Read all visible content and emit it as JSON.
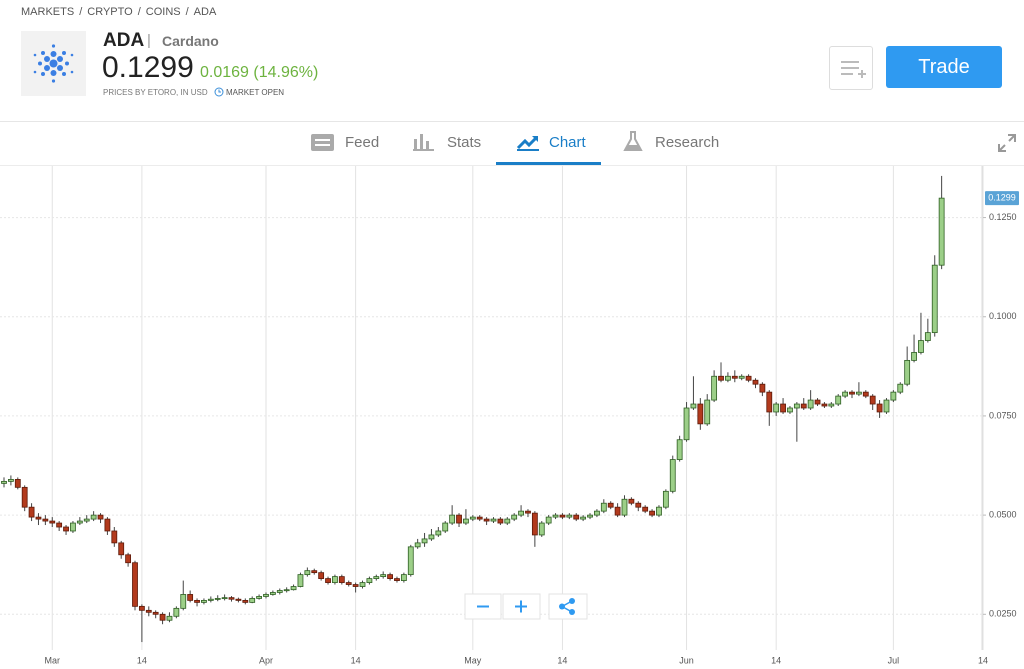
{
  "breadcrumb": {
    "items": [
      "MARKETS",
      "CRYPTO",
      "COINS",
      "ADA"
    ],
    "separator": "/"
  },
  "header": {
    "symbol": "ADA",
    "divider": "|",
    "name": "Cardano",
    "price": "0.1299",
    "change": "0.0169 (14.96%)",
    "source": "PRICES BY ETORO, IN USD",
    "status": "MARKET OPEN",
    "trade_button": "Trade"
  },
  "tabs": [
    "Feed",
    "Stats",
    "Chart",
    "Research"
  ],
  "chart_data": {
    "type": "candlestick",
    "x": [
      "02-23",
      "02-24",
      "02-25",
      "02-26",
      "02-27",
      "02-28",
      "02-29",
      "03-01",
      "03-02",
      "03-03",
      "03-04",
      "03-05",
      "03-06",
      "03-07",
      "03-08",
      "03-09",
      "03-10",
      "03-11",
      "03-12",
      "03-13",
      "03-14",
      "03-15",
      "03-16",
      "03-17",
      "03-18",
      "03-19",
      "03-20",
      "03-21",
      "03-22",
      "03-23",
      "03-24",
      "03-25",
      "03-26",
      "03-27",
      "03-28",
      "03-29",
      "03-30",
      "03-31",
      "04-01",
      "04-02",
      "04-03",
      "04-04",
      "04-05",
      "04-06",
      "04-07",
      "04-08",
      "04-09",
      "04-10",
      "04-11",
      "04-12",
      "04-13",
      "04-14",
      "04-15",
      "04-16",
      "04-17",
      "04-18",
      "04-19",
      "04-20",
      "04-21",
      "04-22",
      "04-23",
      "04-24",
      "04-25",
      "04-26",
      "04-27",
      "04-28",
      "04-29",
      "04-30",
      "05-01",
      "05-02",
      "05-03",
      "05-04",
      "05-05",
      "05-06",
      "05-07",
      "05-08",
      "05-09",
      "05-10",
      "05-11",
      "05-12",
      "05-13",
      "05-14",
      "05-15",
      "05-16",
      "05-17",
      "05-18",
      "05-19",
      "05-20",
      "05-21",
      "05-22",
      "05-23",
      "05-24",
      "05-25",
      "05-26",
      "05-27",
      "05-28",
      "05-29",
      "05-30",
      "05-31",
      "06-01",
      "06-02",
      "06-03",
      "06-04",
      "06-05",
      "06-06",
      "06-07",
      "06-08",
      "06-09",
      "06-10",
      "06-11",
      "06-12",
      "06-13",
      "06-14",
      "06-15",
      "06-16",
      "06-17",
      "06-18",
      "06-19",
      "06-20",
      "06-21",
      "06-22",
      "06-23",
      "06-24",
      "06-25",
      "06-26",
      "06-27",
      "06-28",
      "06-29",
      "06-30",
      "07-01",
      "07-02",
      "07-03",
      "07-04",
      "07-05",
      "07-06",
      "07-07",
      "07-08"
    ],
    "open": [
      0.058,
      0.0585,
      0.059,
      0.057,
      0.052,
      0.0495,
      0.049,
      0.0485,
      0.048,
      0.047,
      0.046,
      0.048,
      0.0485,
      0.049,
      0.05,
      0.049,
      0.046,
      0.043,
      0.04,
      0.038,
      0.027,
      0.026,
      0.0255,
      0.025,
      0.0235,
      0.0245,
      0.0265,
      0.03,
      0.0285,
      0.028,
      0.0285,
      0.0288,
      0.029,
      0.0292,
      0.0288,
      0.0285,
      0.028,
      0.029,
      0.0295,
      0.03,
      0.0305,
      0.031,
      0.0312,
      0.032,
      0.035,
      0.036,
      0.0355,
      0.034,
      0.033,
      0.0345,
      0.033,
      0.0325,
      0.032,
      0.033,
      0.034,
      0.0345,
      0.035,
      0.034,
      0.0335,
      0.035,
      0.042,
      0.043,
      0.044,
      0.045,
      0.046,
      0.048,
      0.05,
      0.048,
      0.049,
      0.0495,
      0.049,
      0.0485,
      0.049,
      0.048,
      0.049,
      0.05,
      0.051,
      0.0505,
      0.045,
      0.048,
      0.0495,
      0.05,
      0.0495,
      0.05,
      0.049,
      0.0495,
      0.05,
      0.051,
      0.053,
      0.052,
      0.05,
      0.054,
      0.053,
      0.052,
      0.051,
      0.05,
      0.052,
      0.056,
      0.064,
      0.069,
      0.077,
      0.078,
      0.073,
      0.079,
      0.085,
      0.084,
      0.085,
      0.0845,
      0.085,
      0.084,
      0.083,
      0.081,
      0.076,
      0.078,
      0.076,
      0.077,
      0.078,
      0.077,
      0.079,
      0.078,
      0.0775,
      0.078,
      0.08,
      0.081,
      0.0805,
      0.081,
      0.08,
      0.078,
      0.076,
      0.079,
      0.081,
      0.083,
      0.089,
      0.091,
      0.094,
      0.096,
      0.113
    ],
    "high": [
      0.0595,
      0.06,
      0.0595,
      0.0575,
      0.053,
      0.0505,
      0.05,
      0.0495,
      0.0485,
      0.0475,
      0.0485,
      0.0495,
      0.05,
      0.051,
      0.0505,
      0.0495,
      0.047,
      0.0435,
      0.0405,
      0.0385,
      0.0275,
      0.027,
      0.026,
      0.0255,
      0.0255,
      0.027,
      0.0335,
      0.031,
      0.029,
      0.029,
      0.0295,
      0.0298,
      0.03,
      0.0296,
      0.0292,
      0.029,
      0.0295,
      0.03,
      0.0305,
      0.031,
      0.0315,
      0.0318,
      0.0325,
      0.0355,
      0.0368,
      0.0365,
      0.036,
      0.0345,
      0.035,
      0.035,
      0.0335,
      0.033,
      0.0335,
      0.0345,
      0.035,
      0.0358,
      0.0355,
      0.0345,
      0.0355,
      0.0425,
      0.044,
      0.0455,
      0.0465,
      0.047,
      0.0485,
      0.0525,
      0.0505,
      0.0515,
      0.05,
      0.05,
      0.0495,
      0.0495,
      0.0495,
      0.0495,
      0.0505,
      0.0525,
      0.0515,
      0.051,
      0.0485,
      0.05,
      0.0505,
      0.0505,
      0.0505,
      0.0505,
      0.05,
      0.0505,
      0.0515,
      0.054,
      0.0535,
      0.053,
      0.055,
      0.0545,
      0.0535,
      0.0525,
      0.0515,
      0.0525,
      0.0565,
      0.065,
      0.07,
      0.0785,
      0.085,
      0.0795,
      0.0805,
      0.0865,
      0.0885,
      0.086,
      0.0865,
      0.0855,
      0.0855,
      0.0845,
      0.0835,
      0.0815,
      0.0785,
      0.0795,
      0.0775,
      0.0785,
      0.0795,
      0.0815,
      0.0795,
      0.0785,
      0.0785,
      0.0805,
      0.0815,
      0.0815,
      0.0835,
      0.0815,
      0.0805,
      0.079,
      0.0795,
      0.0815,
      0.0835,
      0.0925,
      0.0955,
      0.101,
      0.0995,
      0.1155,
      0.1355
    ],
    "low": [
      0.057,
      0.0575,
      0.0565,
      0.051,
      0.0485,
      0.0475,
      0.0475,
      0.047,
      0.046,
      0.045,
      0.0455,
      0.0475,
      0.048,
      0.0485,
      0.048,
      0.045,
      0.042,
      0.039,
      0.037,
      0.026,
      0.018,
      0.0245,
      0.024,
      0.0225,
      0.023,
      0.024,
      0.026,
      0.028,
      0.027,
      0.0275,
      0.028,
      0.0283,
      0.0285,
      0.0282,
      0.028,
      0.0275,
      0.0278,
      0.0287,
      0.029,
      0.0297,
      0.03,
      0.0305,
      0.031,
      0.0318,
      0.0345,
      0.035,
      0.0335,
      0.0325,
      0.0325,
      0.0325,
      0.032,
      0.0305,
      0.0315,
      0.0325,
      0.0335,
      0.034,
      0.0335,
      0.033,
      0.033,
      0.0345,
      0.0415,
      0.042,
      0.0435,
      0.0445,
      0.0455,
      0.0475,
      0.047,
      0.0475,
      0.0485,
      0.0485,
      0.0475,
      0.048,
      0.0475,
      0.0475,
      0.0485,
      0.0495,
      0.0495,
      0.042,
      0.0445,
      0.0475,
      0.049,
      0.049,
      0.049,
      0.0485,
      0.0485,
      0.049,
      0.0495,
      0.0505,
      0.0515,
      0.0495,
      0.0495,
      0.0525,
      0.051,
      0.0505,
      0.0495,
      0.0495,
      0.0515,
      0.0555,
      0.0635,
      0.0685,
      0.0765,
      0.0715,
      0.0725,
      0.0785,
      0.0835,
      0.0835,
      0.0835,
      0.084,
      0.0835,
      0.082,
      0.08,
      0.0725,
      0.075,
      0.0755,
      0.0755,
      0.0685,
      0.0765,
      0.0765,
      0.0775,
      0.077,
      0.077,
      0.0775,
      0.0795,
      0.0795,
      0.08,
      0.0795,
      0.0765,
      0.0745,
      0.0755,
      0.0785,
      0.0805,
      0.0825,
      0.0885,
      0.0905,
      0.0935,
      0.095,
      0.112
    ],
    "close": [
      0.0585,
      0.059,
      0.057,
      0.052,
      0.0495,
      0.049,
      0.0485,
      0.048,
      0.047,
      0.046,
      0.048,
      0.0485,
      0.049,
      0.05,
      0.049,
      0.046,
      0.043,
      0.04,
      0.038,
      0.027,
      0.026,
      0.0255,
      0.025,
      0.0235,
      0.0245,
      0.0265,
      0.03,
      0.0285,
      0.028,
      0.0285,
      0.0288,
      0.029,
      0.0292,
      0.0288,
      0.0285,
      0.028,
      0.029,
      0.0295,
      0.03,
      0.0305,
      0.031,
      0.0312,
      0.032,
      0.035,
      0.036,
      0.0355,
      0.034,
      0.033,
      0.0345,
      0.033,
      0.0325,
      0.032,
      0.033,
      0.034,
      0.0345,
      0.035,
      0.034,
      0.0335,
      0.035,
      0.042,
      0.043,
      0.044,
      0.045,
      0.046,
      0.048,
      0.05,
      0.048,
      0.049,
      0.0495,
      0.049,
      0.0485,
      0.049,
      0.048,
      0.049,
      0.05,
      0.051,
      0.0505,
      0.045,
      0.048,
      0.0495,
      0.05,
      0.0495,
      0.05,
      0.049,
      0.0495,
      0.05,
      0.051,
      0.053,
      0.052,
      0.05,
      0.054,
      0.053,
      0.052,
      0.051,
      0.05,
      0.052,
      0.056,
      0.064,
      0.069,
      0.077,
      0.078,
      0.073,
      0.079,
      0.085,
      0.084,
      0.085,
      0.0845,
      0.085,
      0.084,
      0.083,
      0.081,
      0.076,
      0.078,
      0.076,
      0.077,
      0.078,
      0.077,
      0.079,
      0.078,
      0.0775,
      0.078,
      0.08,
      0.081,
      0.0805,
      0.081,
      0.08,
      0.078,
      0.076,
      0.079,
      0.081,
      0.083,
      0.089,
      0.091,
      0.094,
      0.096,
      0.113,
      0.1299
    ],
    "up_color": "#9ccf88",
    "down_color": "#b23a1d",
    "xlim": [
      "02-23",
      "07-14"
    ],
    "xticks": [
      {
        "value": "03-01",
        "label": "Mar"
      },
      {
        "value": "03-14",
        "label": "14"
      },
      {
        "value": "04-01",
        "label": "Apr"
      },
      {
        "value": "04-14",
        "label": "14"
      },
      {
        "value": "05-01",
        "label": "May"
      },
      {
        "value": "05-14",
        "label": "14"
      },
      {
        "value": "06-01",
        "label": "Jun"
      },
      {
        "value": "06-14",
        "label": "14"
      },
      {
        "value": "07-01",
        "label": "Jul"
      },
      {
        "value": "07-14",
        "label": "14"
      }
    ],
    "ylim": [
      0.016,
      0.138
    ],
    "yticks": [
      {
        "value": 0.025,
        "label": "0.0250"
      },
      {
        "value": 0.05,
        "label": "0.0500"
      },
      {
        "value": 0.075,
        "label": "0.0750"
      },
      {
        "value": 0.1,
        "label": "0.1000"
      },
      {
        "value": 0.125,
        "label": "0.1250"
      }
    ],
    "grid": true
  }
}
